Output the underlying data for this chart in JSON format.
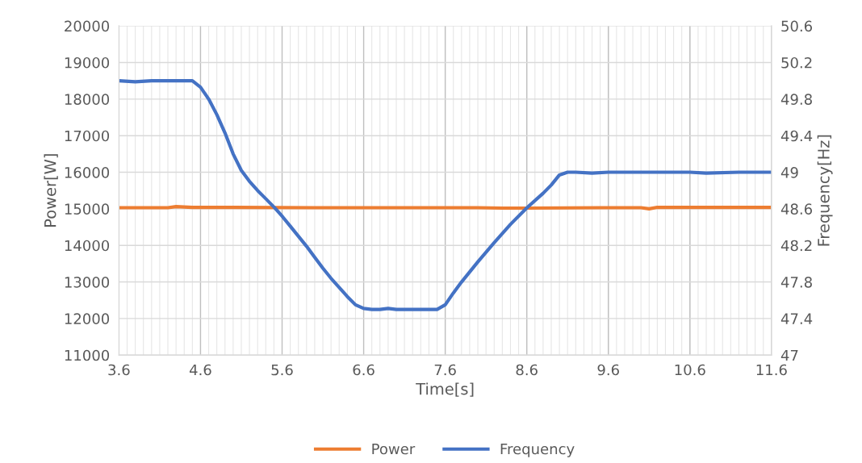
{
  "chart_data": {
    "type": "line",
    "xlabel": "Time[s]",
    "ylabel": "Power[W]",
    "y2label": "Frequency[Hz]",
    "xlim": [
      3.6,
      11.6
    ],
    "xticks": [
      3.6,
      4.6,
      5.6,
      6.6,
      7.6,
      8.6,
      9.6,
      10.6,
      11.6
    ],
    "ylim": [
      11000,
      20000
    ],
    "yticks": [
      11000,
      12000,
      13000,
      14000,
      15000,
      16000,
      17000,
      18000,
      19000,
      20000
    ],
    "y2lim": [
      47,
      50.6
    ],
    "y2ticks": [
      47,
      47.4,
      47.8,
      48.2,
      48.6,
      49,
      49.4,
      49.8,
      50.2,
      50.6
    ],
    "grid": true,
    "legend": "bottom",
    "line_style": "solid",
    "marker": "none",
    "series": [
      {
        "name": "Power",
        "color": "#ed7d31",
        "x": [
          3.6,
          4.2,
          4.3,
          4.5,
          5.0,
          6.0,
          7.0,
          8.0,
          8.3,
          8.6,
          9.5,
          10.0,
          10.1,
          10.2,
          10.8,
          11.6
        ],
        "values": [
          15030,
          15030,
          15060,
          15040,
          15040,
          15030,
          15030,
          15030,
          15020,
          15020,
          15030,
          15030,
          15000,
          15040,
          15040,
          15040
        ]
      },
      {
        "name": "Frequency",
        "color": "#4472c4",
        "axis": "y2",
        "x": [
          3.6,
          3.8,
          4.0,
          4.2,
          4.4,
          4.5,
          4.6,
          4.7,
          4.8,
          4.9,
          5.0,
          5.1,
          5.2,
          5.3,
          5.4,
          5.5,
          5.6,
          5.7,
          5.8,
          5.9,
          6.0,
          6.1,
          6.2,
          6.3,
          6.4,
          6.5,
          6.6,
          6.7,
          6.8,
          6.9,
          7.0,
          7.2,
          7.4,
          7.5,
          7.6,
          7.7,
          7.8,
          7.9,
          8.0,
          8.2,
          8.4,
          8.6,
          8.8,
          8.9,
          9.0,
          9.1,
          9.2,
          9.4,
          9.6,
          10.0,
          10.6,
          10.8,
          11.2,
          11.6
        ],
        "values": [
          50.0,
          49.99,
          50.0,
          50.0,
          50.0,
          50.0,
          49.93,
          49.8,
          49.63,
          49.43,
          49.2,
          49.02,
          48.9,
          48.8,
          48.71,
          48.62,
          48.52,
          48.41,
          48.3,
          48.19,
          48.07,
          47.95,
          47.84,
          47.74,
          47.64,
          47.55,
          47.51,
          47.5,
          47.5,
          47.51,
          47.5,
          47.5,
          47.5,
          47.5,
          47.55,
          47.68,
          47.8,
          47.91,
          48.02,
          48.23,
          48.43,
          48.61,
          48.77,
          48.86,
          48.97,
          49.0,
          49.0,
          48.99,
          49.0,
          49.0,
          49.0,
          48.99,
          49.0,
          49.0
        ]
      }
    ]
  }
}
